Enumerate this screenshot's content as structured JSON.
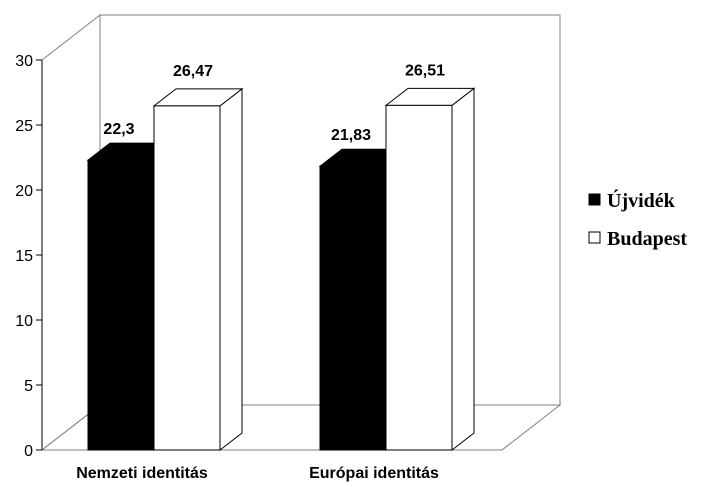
{
  "chart_data": {
    "type": "bar",
    "categories": [
      "Nemzeti identitás",
      "Európai identitás"
    ],
    "series": [
      {
        "name": "Újvidék",
        "values": [
          22.3,
          21.83
        ],
        "labels": [
          "22,3",
          "21,83"
        ],
        "color": "#000000"
      },
      {
        "name": "Budapest",
        "values": [
          26.47,
          26.51
        ],
        "labels": [
          "26,47",
          "26,51"
        ],
        "color": "#ffffff"
      }
    ],
    "yticks": [
      "0",
      "5",
      "10",
      "15",
      "20",
      "25",
      "30"
    ],
    "ylim": [
      0,
      30
    ],
    "legend_position": "right",
    "grid": false,
    "style": "3d-bar"
  }
}
